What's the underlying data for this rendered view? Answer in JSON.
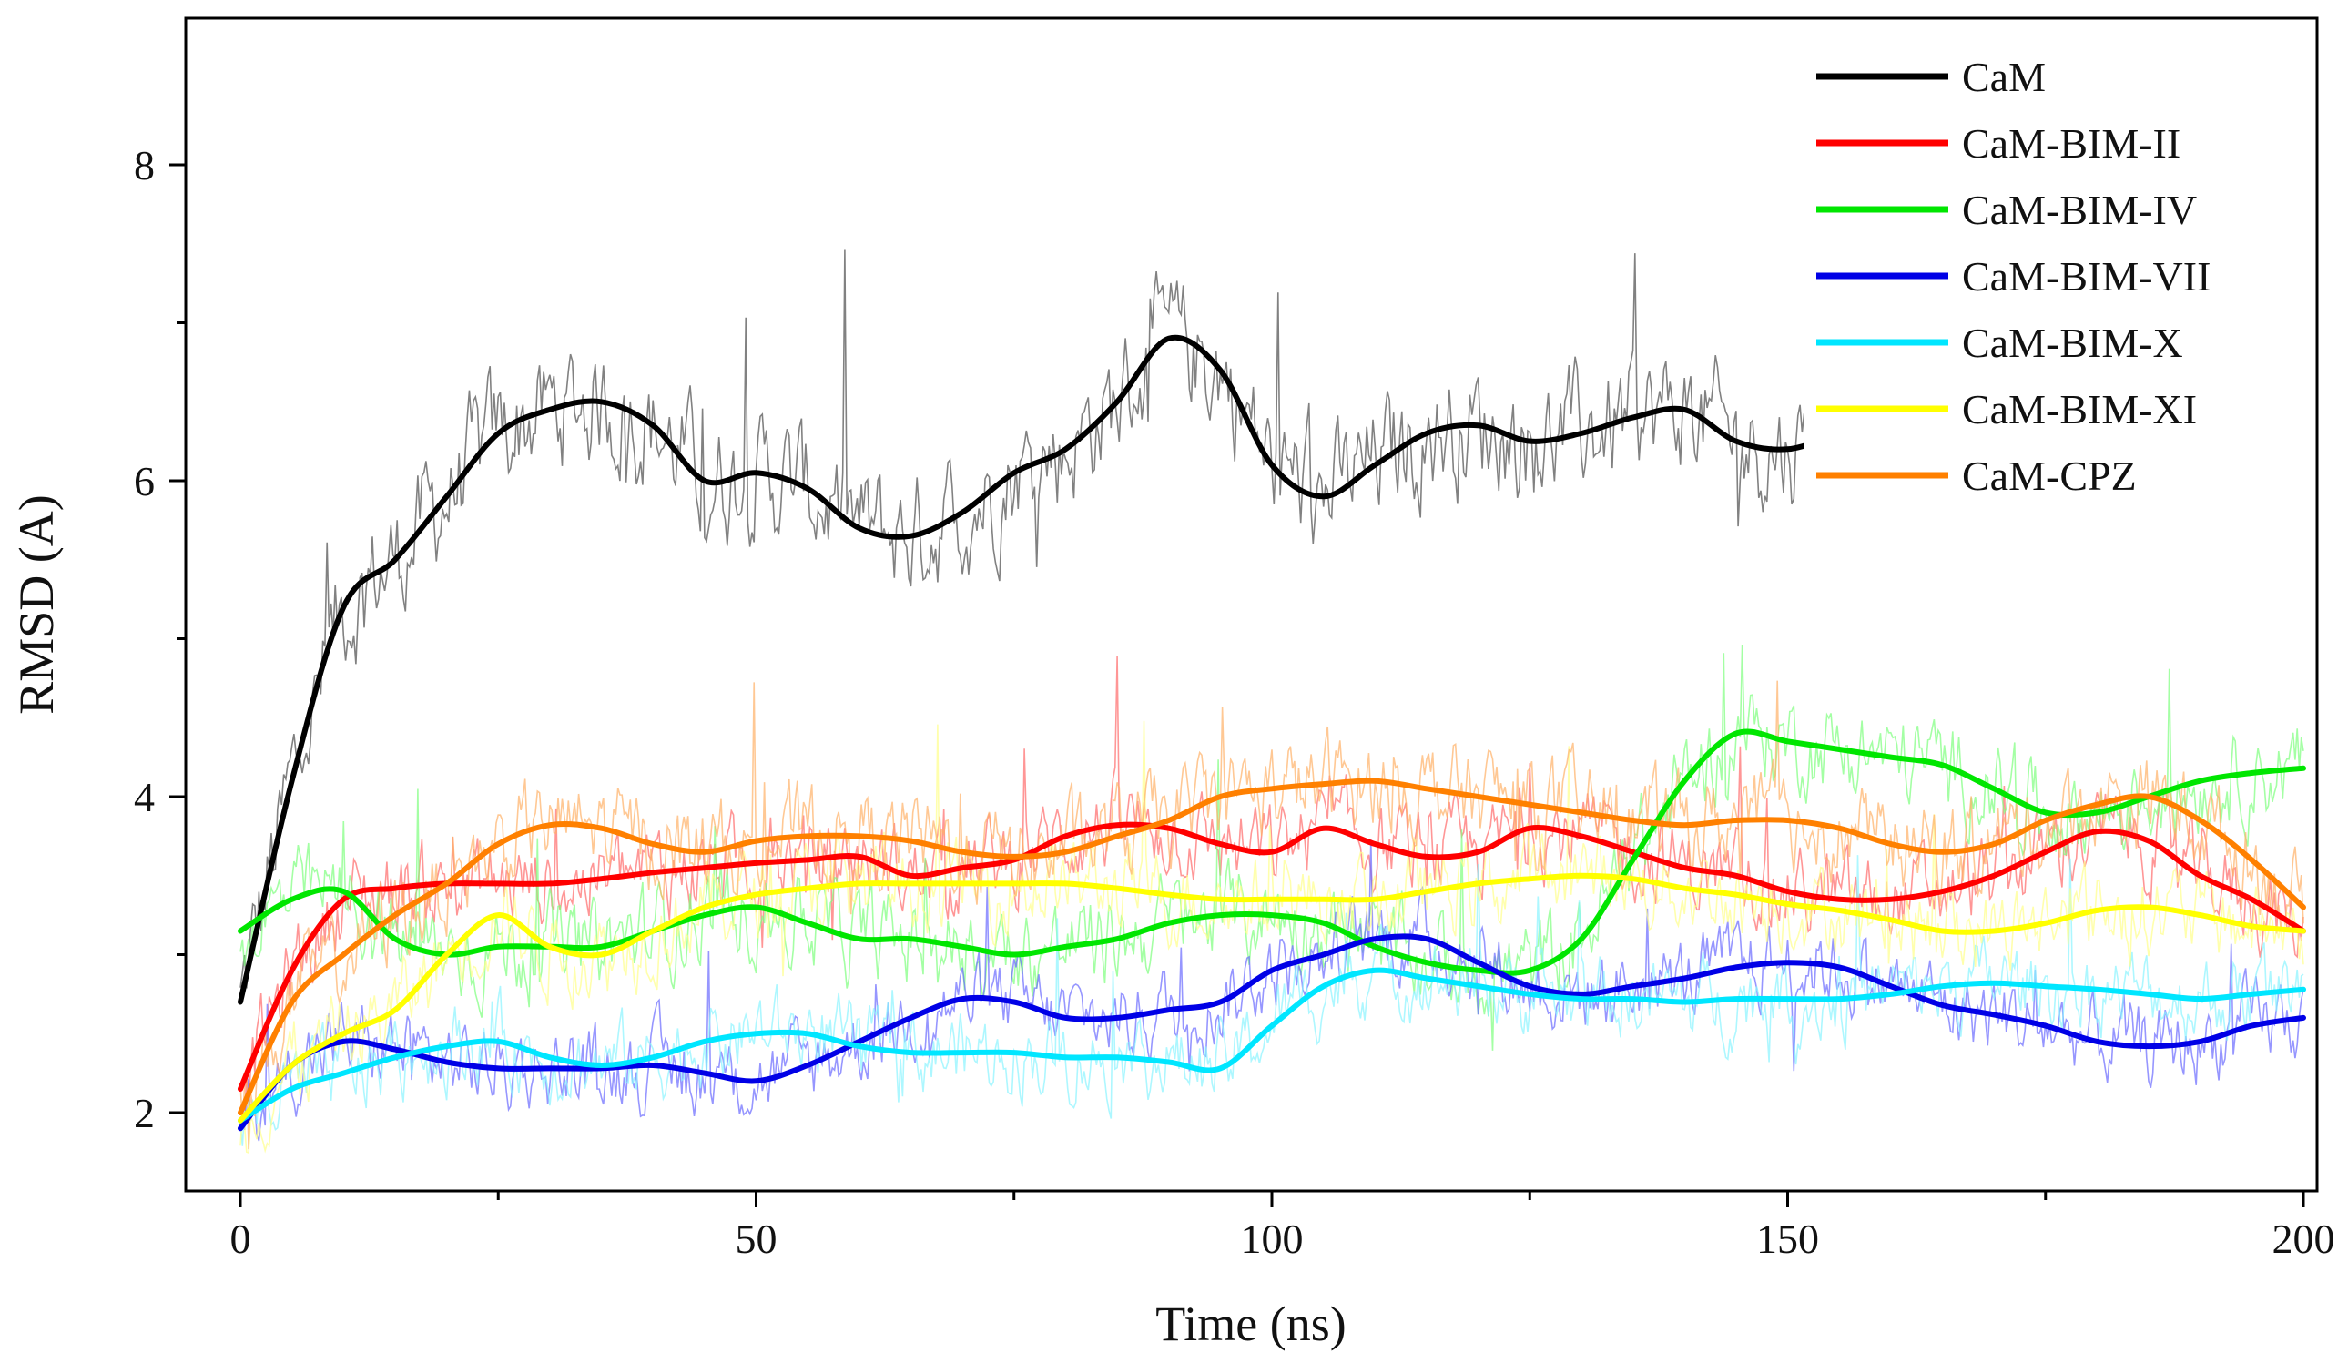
{
  "chart_data": {
    "type": "line",
    "title": "",
    "xlabel": "Time (ns)",
    "ylabel": "RMSD (A)",
    "xlim": [
      -5,
      205
    ],
    "ylim": [
      1.5,
      8.75
    ],
    "xticks": [
      0,
      50,
      100,
      150,
      200
    ],
    "yticks": [
      2,
      4,
      6,
      8
    ],
    "xminor": [
      25,
      75,
      125,
      175
    ],
    "yminor": [
      3,
      5,
      7
    ],
    "legend_position": "top-right",
    "series": [
      {
        "name": "CaM",
        "color": "#000000",
        "raw_color": "#7a7a7a",
        "noise": 0.42,
        "x_end": 155,
        "x": [
          0,
          5,
          10,
          15,
          20,
          25,
          30,
          35,
          40,
          45,
          50,
          55,
          60,
          65,
          70,
          75,
          80,
          85,
          90,
          95,
          100,
          105,
          110,
          115,
          120,
          125,
          130,
          135,
          140,
          145,
          150,
          155
        ],
        "y": [
          2.7,
          4.1,
          5.2,
          5.5,
          5.9,
          6.3,
          6.45,
          6.5,
          6.35,
          6.0,
          6.05,
          5.95,
          5.7,
          5.65,
          5.8,
          6.05,
          6.2,
          6.5,
          6.9,
          6.7,
          6.1,
          5.9,
          6.1,
          6.3,
          6.35,
          6.25,
          6.3,
          6.4,
          6.45,
          6.25,
          6.2,
          6.3
        ]
      },
      {
        "name": "CaM-BIM-II",
        "color": "#ff0000",
        "raw_color": "#ff6a6a",
        "noise": 0.3,
        "x_end": 200,
        "x": [
          0,
          5,
          10,
          15,
          20,
          25,
          30,
          35,
          40,
          45,
          50,
          55,
          60,
          65,
          70,
          75,
          80,
          85,
          90,
          95,
          100,
          105,
          110,
          115,
          120,
          125,
          130,
          135,
          140,
          145,
          150,
          155,
          160,
          165,
          170,
          175,
          180,
          185,
          190,
          195,
          200
        ],
        "y": [
          2.15,
          2.9,
          3.35,
          3.42,
          3.45,
          3.45,
          3.45,
          3.48,
          3.52,
          3.55,
          3.58,
          3.6,
          3.62,
          3.5,
          3.55,
          3.6,
          3.75,
          3.82,
          3.8,
          3.7,
          3.65,
          3.8,
          3.7,
          3.62,
          3.65,
          3.8,
          3.75,
          3.65,
          3.55,
          3.5,
          3.4,
          3.35,
          3.35,
          3.4,
          3.5,
          3.65,
          3.78,
          3.72,
          3.5,
          3.35,
          3.15
        ]
      },
      {
        "name": "CaM-BIM-IV",
        "color": "#00e600",
        "raw_color": "#7dff7d",
        "noise": 0.32,
        "x_end": 200,
        "x": [
          0,
          5,
          10,
          15,
          20,
          25,
          30,
          35,
          40,
          45,
          50,
          55,
          60,
          65,
          70,
          75,
          80,
          85,
          90,
          95,
          100,
          105,
          110,
          115,
          120,
          125,
          130,
          135,
          140,
          145,
          150,
          155,
          160,
          165,
          170,
          175,
          180,
          185,
          190,
          195,
          200
        ],
        "y": [
          3.15,
          3.35,
          3.4,
          3.1,
          3.0,
          3.05,
          3.05,
          3.05,
          3.15,
          3.25,
          3.3,
          3.2,
          3.1,
          3.1,
          3.05,
          3.0,
          3.05,
          3.1,
          3.2,
          3.25,
          3.25,
          3.2,
          3.05,
          2.95,
          2.9,
          2.9,
          3.1,
          3.6,
          4.1,
          4.4,
          4.35,
          4.3,
          4.25,
          4.2,
          4.05,
          3.9,
          3.9,
          4.0,
          4.1,
          4.15,
          4.18
        ]
      },
      {
        "name": "CaM-BIM-VII",
        "color": "#0000e6",
        "raw_color": "#6a6aff",
        "noise": 0.28,
        "x_end": 200,
        "x": [
          0,
          5,
          10,
          15,
          20,
          25,
          30,
          35,
          40,
          45,
          50,
          55,
          60,
          65,
          70,
          75,
          80,
          85,
          90,
          95,
          100,
          105,
          110,
          115,
          120,
          125,
          130,
          135,
          140,
          145,
          150,
          155,
          160,
          165,
          170,
          175,
          180,
          185,
          190,
          195,
          200
        ],
        "y": [
          1.9,
          2.3,
          2.45,
          2.4,
          2.32,
          2.28,
          2.28,
          2.28,
          2.3,
          2.25,
          2.2,
          2.3,
          2.45,
          2.6,
          2.72,
          2.7,
          2.6,
          2.6,
          2.65,
          2.7,
          2.9,
          3.0,
          3.1,
          3.1,
          2.95,
          2.8,
          2.75,
          2.8,
          2.85,
          2.92,
          2.95,
          2.92,
          2.8,
          2.68,
          2.62,
          2.55,
          2.45,
          2.42,
          2.45,
          2.55,
          2.6
        ]
      },
      {
        "name": "CaM-BIM-X",
        "color": "#00e6ff",
        "raw_color": "#8af3ff",
        "noise": 0.28,
        "x_end": 200,
        "x": [
          0,
          5,
          10,
          15,
          20,
          25,
          30,
          35,
          40,
          45,
          50,
          55,
          60,
          65,
          70,
          75,
          80,
          85,
          90,
          95,
          100,
          105,
          110,
          115,
          120,
          125,
          130,
          135,
          140,
          145,
          150,
          155,
          160,
          165,
          170,
          175,
          180,
          185,
          190,
          195,
          200
        ],
        "y": [
          1.95,
          2.15,
          2.25,
          2.35,
          2.42,
          2.45,
          2.35,
          2.3,
          2.35,
          2.45,
          2.5,
          2.5,
          2.42,
          2.38,
          2.38,
          2.38,
          2.35,
          2.35,
          2.32,
          2.28,
          2.55,
          2.8,
          2.9,
          2.85,
          2.8,
          2.75,
          2.72,
          2.72,
          2.7,
          2.72,
          2.72,
          2.72,
          2.75,
          2.8,
          2.82,
          2.8,
          2.78,
          2.75,
          2.72,
          2.75,
          2.78
        ]
      },
      {
        "name": "CaM-BIM-XI",
        "color": "#ffff00",
        "raw_color": "#ffff8a",
        "noise": 0.3,
        "x_end": 200,
        "x": [
          0,
          5,
          10,
          15,
          20,
          25,
          30,
          35,
          40,
          45,
          50,
          55,
          60,
          65,
          70,
          75,
          80,
          85,
          90,
          95,
          100,
          105,
          110,
          115,
          120,
          125,
          130,
          135,
          140,
          145,
          150,
          155,
          160,
          165,
          170,
          175,
          180,
          185,
          190,
          195,
          200
        ],
        "y": [
          1.95,
          2.3,
          2.5,
          2.65,
          3.0,
          3.25,
          3.05,
          3.0,
          3.15,
          3.3,
          3.38,
          3.42,
          3.45,
          3.45,
          3.45,
          3.45,
          3.45,
          3.42,
          3.38,
          3.35,
          3.35,
          3.35,
          3.35,
          3.4,
          3.45,
          3.48,
          3.5,
          3.48,
          3.42,
          3.38,
          3.32,
          3.28,
          3.22,
          3.15,
          3.15,
          3.2,
          3.28,
          3.3,
          3.25,
          3.18,
          3.15
        ]
      },
      {
        "name": "CaM-CPZ",
        "color": "#ff8000",
        "raw_color": "#ffb066",
        "noise": 0.32,
        "x_end": 200,
        "x": [
          0,
          5,
          10,
          15,
          20,
          25,
          30,
          35,
          40,
          45,
          50,
          55,
          60,
          65,
          70,
          75,
          80,
          85,
          90,
          95,
          100,
          105,
          110,
          115,
          120,
          125,
          130,
          135,
          140,
          145,
          150,
          155,
          160,
          165,
          170,
          175,
          180,
          185,
          190,
          195,
          200
        ],
        "y": [
          2.0,
          2.7,
          3.0,
          3.25,
          3.45,
          3.7,
          3.82,
          3.8,
          3.7,
          3.65,
          3.72,
          3.75,
          3.75,
          3.72,
          3.65,
          3.62,
          3.65,
          3.75,
          3.85,
          4.0,
          4.05,
          4.08,
          4.1,
          4.05,
          4.0,
          3.95,
          3.9,
          3.85,
          3.82,
          3.85,
          3.85,
          3.8,
          3.7,
          3.65,
          3.7,
          3.85,
          3.95,
          4.0,
          3.85,
          3.6,
          3.3
        ]
      }
    ]
  }
}
